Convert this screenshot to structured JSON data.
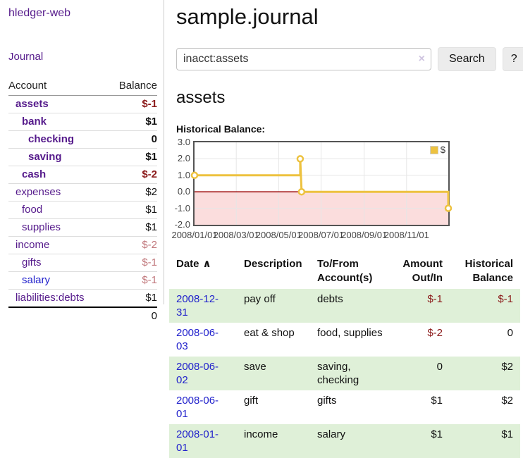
{
  "sidebar": {
    "brand": "hledger-web",
    "journal_link": "Journal",
    "accounts_header": {
      "account": "Account",
      "balance": "Balance"
    },
    "accounts": [
      {
        "name": "assets",
        "indent": 0,
        "bold": true,
        "blue": false,
        "balance": "$-1",
        "balance_style": "neg-strong"
      },
      {
        "name": "bank",
        "indent": 1,
        "bold": true,
        "blue": false,
        "balance": "$1",
        "balance_style": "strong"
      },
      {
        "name": "checking",
        "indent": 2,
        "bold": true,
        "blue": false,
        "balance": "0",
        "balance_style": "strong"
      },
      {
        "name": "saving",
        "indent": 2,
        "bold": true,
        "blue": false,
        "balance": "$1",
        "balance_style": "strong"
      },
      {
        "name": "cash",
        "indent": 1,
        "bold": true,
        "blue": false,
        "balance": "$-2",
        "balance_style": "neg-strong"
      },
      {
        "name": "expenses",
        "indent": 0,
        "bold": false,
        "blue": false,
        "balance": "$2",
        "balance_style": "plain"
      },
      {
        "name": "food",
        "indent": 1,
        "bold": false,
        "blue": false,
        "balance": "$1",
        "balance_style": "plain"
      },
      {
        "name": "supplies",
        "indent": 1,
        "bold": false,
        "blue": false,
        "balance": "$1",
        "balance_style": "plain"
      },
      {
        "name": "income",
        "indent": 0,
        "bold": false,
        "blue": false,
        "balance": "$-2",
        "balance_style": "neg-soft"
      },
      {
        "name": "gifts",
        "indent": 1,
        "bold": false,
        "blue": false,
        "balance": "$-1",
        "balance_style": "neg-soft"
      },
      {
        "name": "salary",
        "indent": 1,
        "bold": false,
        "blue": true,
        "balance": "$-1",
        "balance_style": "neg-soft"
      },
      {
        "name": "liabilities:debts",
        "indent": 0,
        "bold": false,
        "blue": false,
        "balance": "$1",
        "balance_style": "plain"
      }
    ],
    "total": "0"
  },
  "header": {
    "title": "sample.journal"
  },
  "search": {
    "value": "inacct:assets",
    "clear_icon": "×",
    "button_label": "Search",
    "help_label": "?"
  },
  "account_page": {
    "title": "assets",
    "chart_label": "Historical Balance:"
  },
  "chart_data": {
    "type": "line",
    "title": "Historical Balance",
    "legend": [
      {
        "label": "$",
        "color": "#edc240"
      }
    ],
    "x_ticks": [
      {
        "label": "2008/01/01",
        "day": 0
      },
      {
        "label": "2008/03/01",
        "day": 60
      },
      {
        "label": "2008/05/01",
        "day": 121
      },
      {
        "label": "2008/07/01",
        "day": 182
      },
      {
        "label": "2008/09/01",
        "day": 244
      },
      {
        "label": "2008/11/01",
        "day": 305
      }
    ],
    "y_ticks": [
      {
        "label": "3.0",
        "value": 3
      },
      {
        "label": "2.0",
        "value": 2
      },
      {
        "label": "1.0",
        "value": 1
      },
      {
        "label": "0.0",
        "value": 0
      },
      {
        "label": "-1.0",
        "value": -1
      },
      {
        "label": "-2.0",
        "value": -2
      }
    ],
    "ylim": [
      -2,
      3
    ],
    "xlim_days": [
      0,
      365
    ],
    "grid": true,
    "legend_position": "top-right",
    "series": [
      {
        "name": "$",
        "color": "#edc240",
        "step_points": [
          {
            "date": "2008-01-01",
            "day": 0,
            "value": 1
          },
          {
            "date": "2008-06-01",
            "day": 152,
            "value": 1
          },
          {
            "date": "2008-06-01",
            "day": 152,
            "value": 2
          },
          {
            "date": "2008-06-03",
            "day": 154,
            "value": 0
          },
          {
            "date": "2008-12-31",
            "day": 365,
            "value": 0
          },
          {
            "date": "2008-12-31",
            "day": 365,
            "value": -1
          }
        ],
        "markers": [
          {
            "day": 0,
            "value": 1
          },
          {
            "day": 152,
            "value": 2
          },
          {
            "day": 154,
            "value": 0
          },
          {
            "day": 365,
            "value": -1
          }
        ]
      }
    ],
    "negative_region_color": "#fbdddd",
    "zero_line_color": "#990000",
    "gridline_color": "#e6e6e6"
  },
  "register_table": {
    "sort_indicator": "∧",
    "columns": [
      {
        "label": "Date"
      },
      {
        "label": "Description"
      },
      {
        "label": "To/From Account(s)"
      },
      {
        "label": "Amount Out/In",
        "align": "right"
      },
      {
        "label": "Historical Balance",
        "align": "right"
      }
    ],
    "rows": [
      {
        "date": "2008-12-31",
        "description": "pay off",
        "accounts": "debts",
        "amount": "$-1",
        "amount_neg": true,
        "balance": "$-1",
        "balance_neg": true
      },
      {
        "date": "2008-06-03",
        "description": "eat & shop",
        "accounts": "food, supplies",
        "amount": "$-2",
        "amount_neg": true,
        "balance": "0",
        "balance_neg": false
      },
      {
        "date": "2008-06-02",
        "description": "save",
        "accounts": "saving, checking",
        "amount": "0",
        "amount_neg": false,
        "balance": "$2",
        "balance_neg": false
      },
      {
        "date": "2008-06-01",
        "description": "gift",
        "accounts": "gifts",
        "amount": "$1",
        "amount_neg": false,
        "balance": "$2",
        "balance_neg": false
      },
      {
        "date": "2008-01-01",
        "description": "income",
        "accounts": "salary",
        "amount": "$1",
        "amount_neg": false,
        "balance": "$1",
        "balance_neg": false
      }
    ]
  }
}
